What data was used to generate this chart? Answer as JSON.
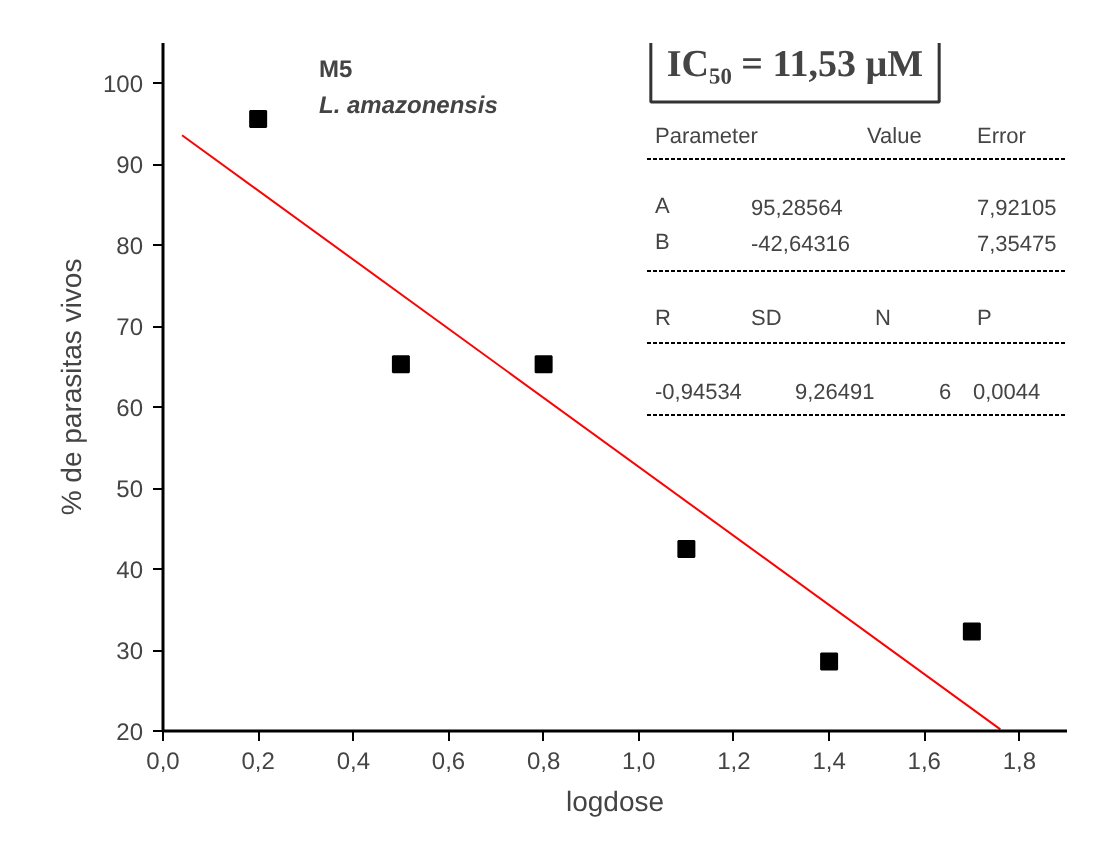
{
  "chart_data": {
    "type": "scatter",
    "xlabel": "logdose",
    "ylabel": "% de parasitas vivos",
    "xlim": [
      0,
      1.9
    ],
    "ylim": [
      20,
      105
    ],
    "xticks": [
      {
        "value": 0,
        "label": "0,0"
      },
      {
        "value": 0.2,
        "label": "0,2"
      },
      {
        "value": 0.4,
        "label": "0,4"
      },
      {
        "value": 0.6,
        "label": "0,6"
      },
      {
        "value": 0.8,
        "label": "0,8"
      },
      {
        "value": 1.0,
        "label": "1,0"
      },
      {
        "value": 1.2,
        "label": "1,2"
      },
      {
        "value": 1.4,
        "label": "1,4"
      },
      {
        "value": 1.6,
        "label": "1,6"
      },
      {
        "value": 1.8,
        "label": "1,8"
      }
    ],
    "yticks": [
      20,
      30,
      40,
      50,
      60,
      70,
      80,
      90,
      100
    ],
    "grid": false,
    "series": [
      {
        "color": "#000000",
        "marker": "square",
        "x": [
          0.2,
          0.5,
          0.8,
          1.1,
          1.4,
          1.7
        ],
        "values": [
          95.6,
          65.3,
          65.3,
          42.5,
          28.6,
          32.3
        ]
      },
      {
        "type": "line",
        "color": "#ff0000",
        "x": [
          0.04,
          1.76
        ],
        "values": [
          93.6,
          20.2
        ]
      }
    ],
    "annotations": [
      "M5",
      "L. amazonensis",
      "IC₅₀ = 11,53 µM",
      "Parameter",
      "Value",
      "Error",
      "A",
      "95,28564",
      "7,92105",
      "B",
      "-42,64316",
      "7,35475",
      "R",
      "SD",
      "N",
      "P",
      "-0,94534",
      "9,26491",
      "6",
      "0,0044"
    ]
  }
}
